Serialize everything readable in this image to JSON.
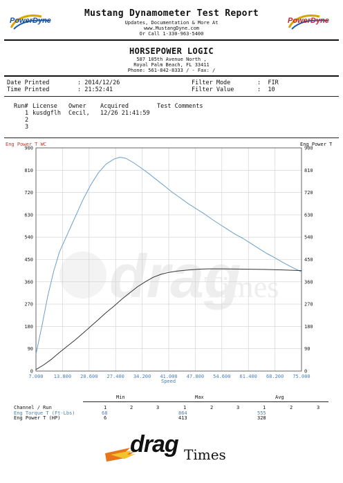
{
  "header": {
    "title": "Mustang Dynamometer Test Report",
    "line1": "Updates, Documentation & More At",
    "line2": "www.MustangDyne.com",
    "line3": "Or Call 1-330-963-5400",
    "logo_left": "PowerDyne",
    "logo_right": "PowerDyne"
  },
  "shop": {
    "name": "HORSEPOWER LOGIC",
    "address1": "587 105th Avenue North ,",
    "address2": "Royal Palm Beach, FL  33411",
    "phone": "Phone: 561-842-8333 /  - Fax:  /"
  },
  "info": {
    "date_label": "Date Printed",
    "date_value": ": 2014/12/26",
    "time_label": "Time Printed",
    "time_value": ": 21:52:41",
    "filter_mode_label": "Filter Mode",
    "filter_mode_value": ":  FIR",
    "filter_value_label": "Filter Value",
    "filter_value_value": ":  10"
  },
  "runs": {
    "headers": [
      "Run#",
      "License",
      "Owner",
      "Acquired",
      "Test Comments"
    ],
    "rows": [
      {
        "run": "1",
        "license": "kusdgflh",
        "owner": "Cecil,",
        "acquired": "12/26 21:41:59"
      },
      {
        "run": "2",
        "license": "",
        "owner": "",
        "acquired": ""
      },
      {
        "run": "3",
        "license": "",
        "owner": "",
        "acquired": ""
      }
    ]
  },
  "chart_data": {
    "type": "line",
    "left_axis_title": "Eng Power T WC",
    "right_axis_title": "Eng Power T",
    "xlabel": "Speed",
    "xlim": [
      7,
      75
    ],
    "ylim": [
      0,
      900
    ],
    "x_ticks": [
      "7.000",
      "13.800",
      "20.600",
      "27.400",
      "34.200",
      "41.000",
      "47.800",
      "54.600",
      "61.400",
      "68.200",
      "75.000"
    ],
    "y_ticks": [
      "0",
      "90",
      "180",
      "270",
      "360",
      "450",
      "540",
      "630",
      "720",
      "810",
      "900"
    ],
    "colors": {
      "torque": "#6a9fcb",
      "power": "#333333",
      "grid": "#cfcfcf"
    },
    "series": [
      {
        "name": "Eng Torque T (Ft-Lbs)",
        "x": [
          7,
          8.5,
          10,
          11.5,
          13,
          15,
          17,
          19,
          21,
          23,
          25,
          27,
          28.5,
          30,
          32,
          34,
          36,
          38,
          40,
          42,
          44,
          46,
          48,
          50,
          52,
          54,
          56,
          58,
          60,
          62,
          64,
          66,
          68,
          70,
          72,
          75
        ],
        "y": [
          68,
          180,
          300,
          400,
          480,
          550,
          620,
          690,
          750,
          800,
          835,
          855,
          862,
          858,
          840,
          818,
          795,
          770,
          745,
          720,
          698,
          675,
          655,
          635,
          613,
          592,
          572,
          552,
          535,
          515,
          495,
          475,
          458,
          440,
          423,
          400
        ]
      },
      {
        "name": "Eng Power T (HP)",
        "x": [
          7,
          9,
          11,
          13,
          15,
          17,
          19,
          21,
          23,
          25,
          27,
          29,
          31,
          33,
          35,
          37,
          39,
          41,
          43,
          45,
          47,
          49,
          51,
          55,
          60,
          65,
          70,
          75
        ],
        "y": [
          6,
          25,
          48,
          75,
          100,
          125,
          152,
          180,
          208,
          236,
          262,
          290,
          315,
          340,
          360,
          378,
          390,
          398,
          403,
          406,
          409,
          411,
          412,
          412,
          411,
          410,
          408,
          405
        ]
      }
    ]
  },
  "stats": {
    "channel_label": "Channel / Run",
    "groups": [
      "Min",
      "Max",
      "Avg"
    ],
    "runs": [
      "1",
      "2",
      "3"
    ],
    "rows": [
      {
        "label": "Eng Torque T (Ft-Lbs)",
        "min": "68",
        "max": "864",
        "avg": "555"
      },
      {
        "label": "Eng Power T (HP)",
        "min": "6",
        "max": "413",
        "avg": "328"
      }
    ]
  },
  "footer": {
    "logo_drag": "drag",
    "logo_times": "Times",
    "watermark_drag": "drag",
    "watermark_times": "Times"
  }
}
